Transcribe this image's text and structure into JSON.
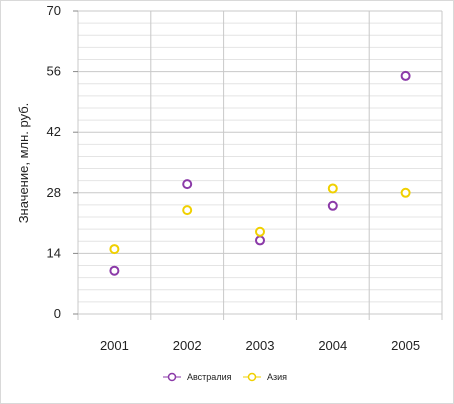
{
  "chart_data": {
    "type": "scatter",
    "title": "",
    "xlabel": "",
    "ylabel": "Значение, млн. руб.",
    "categories": [
      "2001",
      "2002",
      "2003",
      "2004",
      "2005"
    ],
    "ylim": [
      0,
      70
    ],
    "yticks": [
      0,
      14,
      28,
      42,
      56,
      70
    ],
    "grid": true,
    "legend_position": "bottom",
    "series": [
      {
        "name": "Австралия",
        "color": "#8b3aa8",
        "values": [
          10,
          30,
          17,
          25,
          55
        ]
      },
      {
        "name": "Азия",
        "color": "#f0d000",
        "values": [
          15,
          24,
          19,
          29,
          28
        ]
      }
    ]
  }
}
